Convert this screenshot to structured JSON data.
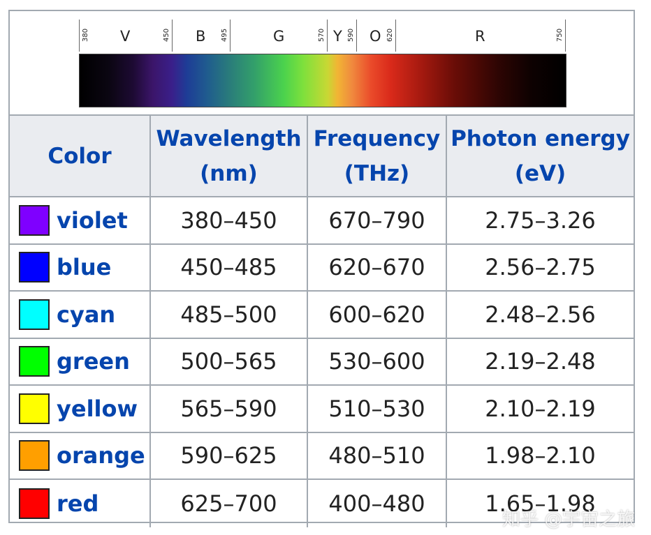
{
  "spectrum": {
    "ticks": [
      "380",
      "450",
      "495",
      "570",
      "590",
      "620",
      "750"
    ],
    "bands": [
      "V",
      "B",
      "G",
      "Y",
      "O",
      "R"
    ]
  },
  "headers": {
    "color": "Color",
    "wavelength_line1": "Wavelength",
    "wavelength_line2": "(nm)",
    "frequency_line1": "Frequency",
    "frequency_line2": "(THz)",
    "energy_line1": "Photon energy",
    "energy_line2": "(eV)"
  },
  "rows": [
    {
      "name": "violet",
      "swatch": "#7f00ff",
      "wavelength": "380–450",
      "frequency": "670–790",
      "energy": "2.75–3.26"
    },
    {
      "name": "blue",
      "swatch": "#0000ff",
      "wavelength": "450–485",
      "frequency": "620–670",
      "energy": "2.56–2.75"
    },
    {
      "name": "cyan",
      "swatch": "#00ffff",
      "wavelength": "485–500",
      "frequency": "600–620",
      "energy": "2.48–2.56"
    },
    {
      "name": "green",
      "swatch": "#00ff00",
      "wavelength": "500–565",
      "frequency": "530–600",
      "energy": "2.19–2.48"
    },
    {
      "name": "yellow",
      "swatch": "#ffff00",
      "wavelength": "565–590",
      "frequency": "510–530",
      "energy": "2.10–2.19"
    },
    {
      "name": "orange",
      "swatch": "#ff9f00",
      "wavelength": "590–625",
      "frequency": "480–510",
      "energy": "1.98–2.10"
    },
    {
      "name": "red",
      "swatch": "#ff0000",
      "wavelength": "625–700",
      "frequency": "400–480",
      "energy": "1.65–1.98"
    }
  ],
  "watermark": "知乎 @宇宙之旅"
}
